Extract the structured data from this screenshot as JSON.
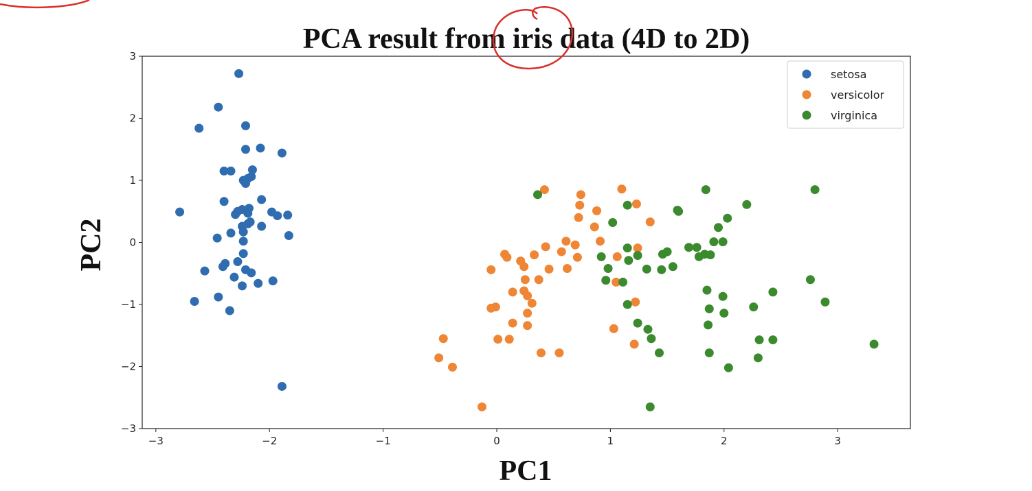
{
  "chart_data": {
    "type": "scatter",
    "title": "PCA result from iris data (4D to 2D)",
    "xlabel": "PC1",
    "ylabel": "PC2",
    "xlim": [
      -3.12,
      3.64
    ],
    "ylim": [
      -3,
      3
    ],
    "xticks": [
      -3,
      -2,
      -1,
      0,
      1,
      2,
      3
    ],
    "yticks": [
      -3,
      -2,
      -1,
      0,
      1,
      2,
      3
    ],
    "xtick_labels": [
      "−3",
      "−2",
      "−1",
      "0",
      "1",
      "2",
      "3"
    ],
    "ytick_labels": [
      "−3",
      "−2",
      "−1",
      "0",
      "1",
      "2",
      "3"
    ],
    "grid": false,
    "legend_position": "top-right",
    "series": [
      {
        "name": "setosa",
        "color": "#2f6db0",
        "points": [
          [
            -2.27,
            2.72
          ],
          [
            -2.45,
            2.18
          ],
          [
            -2.62,
            1.84
          ],
          [
            -2.21,
            1.88
          ],
          [
            -2.21,
            1.5
          ],
          [
            -2.08,
            1.52
          ],
          [
            -1.89,
            1.44
          ],
          [
            -2.4,
            1.15
          ],
          [
            -2.34,
            1.15
          ],
          [
            -2.15,
            1.17
          ],
          [
            -2.23,
            1.0
          ],
          [
            -2.19,
            1.03
          ],
          [
            -2.16,
            1.06
          ],
          [
            -2.21,
            0.95
          ],
          [
            -2.4,
            0.66
          ],
          [
            -2.07,
            0.69
          ],
          [
            -2.79,
            0.49
          ],
          [
            -2.28,
            0.5
          ],
          [
            -2.24,
            0.53
          ],
          [
            -2.18,
            0.55
          ],
          [
            -2.19,
            0.47
          ],
          [
            -2.3,
            0.45
          ],
          [
            -1.98,
            0.49
          ],
          [
            -1.93,
            0.43
          ],
          [
            -1.84,
            0.44
          ],
          [
            -2.17,
            0.33
          ],
          [
            -2.24,
            0.26
          ],
          [
            -2.19,
            0.3
          ],
          [
            -2.07,
            0.26
          ],
          [
            -2.34,
            0.15
          ],
          [
            -2.23,
            0.17
          ],
          [
            -2.46,
            0.07
          ],
          [
            -1.83,
            0.11
          ],
          [
            -2.23,
            0.02
          ],
          [
            -2.23,
            -0.18
          ],
          [
            -2.28,
            -0.31
          ],
          [
            -2.39,
            -0.34
          ],
          [
            -2.41,
            -0.39
          ],
          [
            -2.57,
            -0.46
          ],
          [
            -2.21,
            -0.44
          ],
          [
            -2.16,
            -0.49
          ],
          [
            -2.31,
            -0.56
          ],
          [
            -2.24,
            -0.7
          ],
          [
            -2.1,
            -0.66
          ],
          [
            -1.97,
            -0.62
          ],
          [
            -2.45,
            -0.88
          ],
          [
            -2.66,
            -0.95
          ],
          [
            -2.35,
            -1.1
          ],
          [
            -1.89,
            -2.32
          ]
        ]
      },
      {
        "name": "versicolor",
        "color": "#ef8636",
        "points": [
          [
            0.42,
            0.85
          ],
          [
            0.74,
            0.77
          ],
          [
            1.1,
            0.86
          ],
          [
            1.23,
            0.62
          ],
          [
            0.73,
            0.6
          ],
          [
            0.88,
            0.51
          ],
          [
            0.72,
            0.4
          ],
          [
            0.86,
            0.25
          ],
          [
            1.35,
            0.33
          ],
          [
            0.91,
            0.02
          ],
          [
            0.61,
            0.02
          ],
          [
            0.43,
            -0.07
          ],
          [
            0.69,
            -0.04
          ],
          [
            0.07,
            -0.19
          ],
          [
            0.09,
            -0.24
          ],
          [
            0.33,
            -0.2
          ],
          [
            0.57,
            -0.15
          ],
          [
            0.71,
            -0.24
          ],
          [
            0.21,
            -0.3
          ],
          [
            1.24,
            -0.09
          ],
          [
            1.06,
            -0.23
          ],
          [
            -0.05,
            -0.44
          ],
          [
            0.24,
            -0.39
          ],
          [
            0.46,
            -0.43
          ],
          [
            0.62,
            -0.42
          ],
          [
            0.37,
            -0.6
          ],
          [
            0.25,
            -0.6
          ],
          [
            1.05,
            -0.64
          ],
          [
            0.24,
            -0.78
          ],
          [
            0.14,
            -0.8
          ],
          [
            0.27,
            -0.86
          ],
          [
            1.22,
            -0.96
          ],
          [
            0.31,
            -0.98
          ],
          [
            -0.01,
            -1.04
          ],
          [
            -0.05,
            -1.06
          ],
          [
            0.27,
            -1.14
          ],
          [
            0.14,
            -1.3
          ],
          [
            0.27,
            -1.34
          ],
          [
            1.03,
            -1.39
          ],
          [
            -0.47,
            -1.55
          ],
          [
            0.01,
            -1.56
          ],
          [
            0.11,
            -1.56
          ],
          [
            1.21,
            -1.64
          ],
          [
            -0.51,
            -1.86
          ],
          [
            0.39,
            -1.78
          ],
          [
            0.55,
            -1.78
          ],
          [
            -0.39,
            -2.01
          ],
          [
            -0.13,
            -2.65
          ]
        ]
      },
      {
        "name": "virginica",
        "color": "#3b8a2e",
        "points": [
          [
            0.36,
            0.77
          ],
          [
            1.84,
            0.85
          ],
          [
            2.8,
            0.85
          ],
          [
            2.2,
            0.61
          ],
          [
            1.15,
            0.6
          ],
          [
            1.59,
            0.52
          ],
          [
            1.6,
            0.5
          ],
          [
            2.03,
            0.39
          ],
          [
            1.95,
            0.24
          ],
          [
            1.02,
            0.32
          ],
          [
            1.91,
            0.01
          ],
          [
            1.99,
            0.01
          ],
          [
            1.76,
            -0.08
          ],
          [
            1.69,
            -0.08
          ],
          [
            1.83,
            -0.19
          ],
          [
            1.88,
            -0.2
          ],
          [
            1.46,
            -0.19
          ],
          [
            1.5,
            -0.15
          ],
          [
            1.78,
            -0.23
          ],
          [
            1.15,
            -0.09
          ],
          [
            0.92,
            -0.23
          ],
          [
            1.16,
            -0.29
          ],
          [
            1.24,
            -0.21
          ],
          [
            0.98,
            -0.42
          ],
          [
            1.32,
            -0.43
          ],
          [
            1.45,
            -0.44
          ],
          [
            1.55,
            -0.39
          ],
          [
            0.96,
            -0.61
          ],
          [
            1.11,
            -0.64
          ],
          [
            2.76,
            -0.6
          ],
          [
            1.85,
            -0.77
          ],
          [
            2.43,
            -0.8
          ],
          [
            1.99,
            -0.87
          ],
          [
            2.89,
            -0.96
          ],
          [
            1.15,
            -1.0
          ],
          [
            2.26,
            -1.04
          ],
          [
            1.87,
            -1.07
          ],
          [
            2.0,
            -1.14
          ],
          [
            1.24,
            -1.3
          ],
          [
            1.33,
            -1.4
          ],
          [
            1.86,
            -1.33
          ],
          [
            1.36,
            -1.55
          ],
          [
            2.31,
            -1.57
          ],
          [
            2.43,
            -1.57
          ],
          [
            3.32,
            -1.64
          ],
          [
            1.43,
            -1.78
          ],
          [
            1.87,
            -1.78
          ],
          [
            2.3,
            -1.86
          ],
          [
            2.04,
            -2.02
          ],
          [
            1.35,
            -2.65
          ]
        ]
      }
    ]
  }
}
